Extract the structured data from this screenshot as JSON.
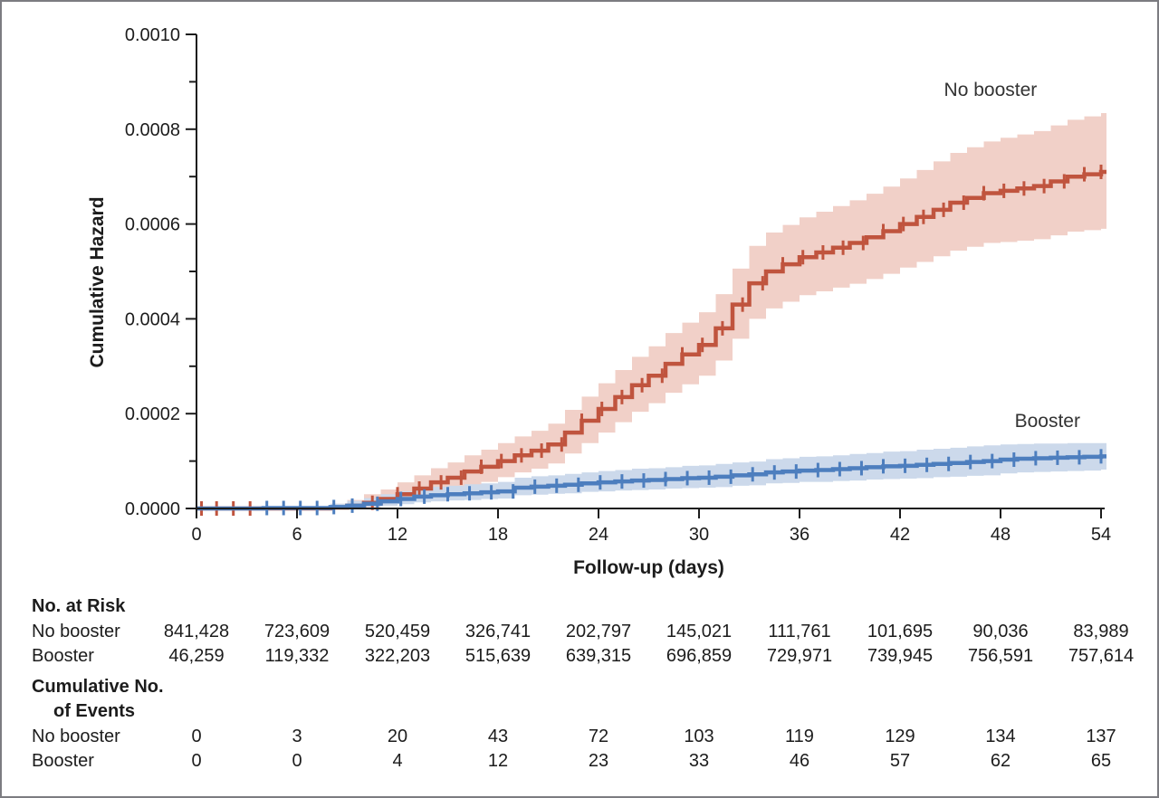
{
  "colors": {
    "no_booster_line": "#c0543e",
    "no_booster_band": "#f1d0c8",
    "booster_line": "#4d7ebe",
    "booster_band": "#ccd9eb",
    "axis": "#1c1c1c",
    "annotation_text": "#333333",
    "frame_border": "#7c7c81"
  },
  "chart_data": {
    "type": "line",
    "subtype": "step-cumulative-hazard-with-ci-bands",
    "title": "",
    "xlabel": "Follow-up (days)",
    "ylabel": "Cumulative Hazard",
    "xlim": [
      0,
      54
    ],
    "ylim": [
      0,
      0.001
    ],
    "x_ticks": [
      0,
      6,
      12,
      18,
      24,
      30,
      36,
      42,
      48,
      54
    ],
    "x_tick_labels": [
      "0",
      "6",
      "12",
      "18",
      "24",
      "30",
      "36",
      "42",
      "48",
      "54"
    ],
    "y_ticks": [
      0,
      0.0002,
      0.0004,
      0.0006,
      0.0008,
      0.001
    ],
    "y_tick_labels": [
      "0.0000",
      "0.0002",
      "0.0004",
      "0.0006",
      "0.0008",
      "0.0010"
    ],
    "y_minor_ticks": [
      0.0001,
      0.0003,
      0.0005,
      0.0007,
      0.0009
    ],
    "grid": false,
    "legend_position": "inline-annotations",
    "series": [
      {
        "name": "No booster",
        "label_day": 47.4,
        "label_value": 0.00087,
        "points_format": [
          "day",
          "cumulative_hazard",
          "ci_lower",
          "ci_upper"
        ],
        "points": [
          [
            0,
            0,
            0,
            0
          ],
          [
            8,
            2e-06,
            0,
            1e-05
          ],
          [
            9,
            6e-06,
            0,
            1.8e-05
          ],
          [
            10,
            1.2e-05,
            2e-06,
            3e-05
          ],
          [
            11,
            2e-05,
            6e-06,
            4e-05
          ],
          [
            12,
            3e-05,
            1.2e-05,
            5.5e-05
          ],
          [
            13,
            4.2e-05,
            2e-05,
            7e-05
          ],
          [
            14,
            5.5e-05,
            3e-05,
            8.5e-05
          ],
          [
            15,
            6.5e-05,
            3.8e-05,
            9.7e-05
          ],
          [
            16,
            7.8e-05,
            4.8e-05,
            0.000112
          ],
          [
            17,
            8.8e-05,
            5.6e-05,
            0.000124
          ],
          [
            18,
            0.0001,
            6.6e-05,
            0.000138
          ],
          [
            19,
            0.000112,
            7.6e-05,
            0.000152
          ],
          [
            20,
            0.000122,
            8.4e-05,
            0.000164
          ],
          [
            21,
            0.000135,
            9.5e-05,
            0.000179
          ],
          [
            22,
            0.00016,
            0.000116,
            0.000208
          ],
          [
            23,
            0.000185,
            0.000138,
            0.000236
          ],
          [
            24,
            0.00021,
            0.00016,
            0.000264
          ],
          [
            25,
            0.000235,
            0.000182,
            0.000292
          ],
          [
            26,
            0.00026,
            0.000204,
            0.00032
          ],
          [
            27,
            0.00028,
            0.000222,
            0.000342
          ],
          [
            28,
            0.000305,
            0.000244,
            0.00037
          ],
          [
            29,
            0.000325,
            0.000262,
            0.000392
          ],
          [
            30,
            0.000345,
            0.00028,
            0.000414
          ],
          [
            31,
            0.00038,
            0.000312,
            0.000452
          ],
          [
            32,
            0.00043,
            0.000358,
            0.000506
          ],
          [
            33,
            0.000475,
            0.0004,
            0.000554
          ],
          [
            34,
            0.0005,
            0.000422,
            0.000582
          ],
          [
            35,
            0.000515,
            0.000436,
            0.000598
          ],
          [
            36,
            0.00053,
            0.00045,
            0.000614
          ],
          [
            37,
            0.00054,
            0.000458,
            0.000626
          ],
          [
            38,
            0.00055,
            0.000466,
            0.000638
          ],
          [
            39,
            0.00056,
            0.000474,
            0.00065
          ],
          [
            40,
            0.000572,
            0.000484,
            0.000664
          ],
          [
            41,
            0.000585,
            0.000495,
            0.000679
          ],
          [
            42,
            0.0006,
            0.000508,
            0.000696
          ],
          [
            43,
            0.000615,
            0.00052,
            0.000714
          ],
          [
            44,
            0.00063,
            0.000532,
            0.000732
          ],
          [
            45,
            0.000645,
            0.000544,
            0.00075
          ],
          [
            46,
            0.000655,
            0.000552,
            0.000762
          ],
          [
            47,
            0.000665,
            0.00056,
            0.000774
          ],
          [
            48,
            0.00067,
            0.000562,
            0.000782
          ],
          [
            49,
            0.000675,
            0.000565,
            0.000789
          ],
          [
            50,
            0.00068,
            0.000568,
            0.000796
          ],
          [
            51,
            0.00069,
            0.000576,
            0.000808
          ],
          [
            52,
            0.0007,
            0.000584,
            0.00082
          ],
          [
            53,
            0.000705,
            0.000587,
            0.000827
          ],
          [
            54,
            0.00071,
            0.00059,
            0.000834
          ]
        ],
        "censor_days": [
          0.3,
          1.2,
          2.2,
          3.2,
          10.5,
          12,
          13.3,
          14.6,
          15.8,
          17,
          18.2,
          19.4,
          20.6,
          21.8,
          23,
          24.2,
          25.4,
          26.6,
          27.8,
          29,
          30.2,
          31.4,
          32.6,
          33.8,
          35,
          36.2,
          37.4,
          38.6,
          39.8,
          41,
          42.2,
          43.4,
          44.6,
          45.8,
          47,
          48.2,
          49.4,
          50.6,
          51.8,
          53,
          54
        ]
      },
      {
        "name": "Booster",
        "label_day": 50.8,
        "label_value": 0.000172,
        "points_format": [
          "day",
          "cumulative_hazard",
          "ci_lower",
          "ci_upper"
        ],
        "points": [
          [
            0,
            0,
            0,
            0
          ],
          [
            4,
            1e-06,
            0,
            4e-06
          ],
          [
            8,
            3e-06,
            0,
            1e-05
          ],
          [
            9,
            6e-06,
            1e-06,
            1.6e-05
          ],
          [
            10,
            1e-05,
            3e-06,
            2.2e-05
          ],
          [
            11,
            1.5e-05,
            6e-06,
            3e-05
          ],
          [
            12,
            2e-05,
            9e-06,
            3.6e-05
          ],
          [
            13,
            2.5e-05,
            1.3e-05,
            4.2e-05
          ],
          [
            14,
            2.8e-05,
            1.5e-05,
            4.6e-05
          ],
          [
            15,
            3e-05,
            1.7e-05,
            4.8e-05
          ],
          [
            16,
            3.2e-05,
            1.8e-05,
            5.1e-05
          ],
          [
            17,
            3.4e-05,
            2e-05,
            5.3e-05
          ],
          [
            18,
            3.6e-05,
            2.1e-05,
            5.6e-05
          ],
          [
            19,
            4.4e-05,
            2.8e-05,
            6.5e-05
          ],
          [
            20,
            4.6e-05,
            2.9e-05,
            6.8e-05
          ],
          [
            21,
            4.8e-05,
            3.1e-05,
            7e-05
          ],
          [
            22,
            5e-05,
            3.2e-05,
            7.3e-05
          ],
          [
            23,
            5.3e-05,
            3.5e-05,
            7.6e-05
          ],
          [
            24,
            5.5e-05,
            3.6e-05,
            7.9e-05
          ],
          [
            25,
            5.7e-05,
            3.8e-05,
            8.1e-05
          ],
          [
            26,
            5.9e-05,
            3.9e-05,
            8.4e-05
          ],
          [
            27,
            6e-05,
            4e-05,
            8.5e-05
          ],
          [
            28,
            6.2e-05,
            4.2e-05,
            8.7e-05
          ],
          [
            29,
            6.4e-05,
            4.3e-05,
            9e-05
          ],
          [
            30,
            6.5e-05,
            4.4e-05,
            9.1e-05
          ],
          [
            31,
            6.7e-05,
            4.5e-05,
            9.4e-05
          ],
          [
            32,
            7e-05,
            4.8e-05,
            9.7e-05
          ],
          [
            33,
            7.2e-05,
            4.9e-05,
            9.9e-05
          ],
          [
            34,
            7.6e-05,
            5.3e-05,
            0.000104
          ],
          [
            35,
            7.8e-05,
            5.4e-05,
            0.000106
          ],
          [
            36,
            8e-05,
            5.6e-05,
            0.000109
          ],
          [
            37,
            8.1e-05,
            5.6e-05,
            0.00011
          ],
          [
            38,
            8.3e-05,
            5.8e-05,
            0.000112
          ],
          [
            39,
            8.5e-05,
            5.9e-05,
            0.000115
          ],
          [
            40,
            8.7e-05,
            6.1e-05,
            0.000117
          ],
          [
            41,
            8.9e-05,
            6.2e-05,
            0.00012
          ],
          [
            42,
            9e-05,
            6.3e-05,
            0.000121
          ],
          [
            43,
            9.2e-05,
            6.4e-05,
            0.000124
          ],
          [
            44,
            9.4e-05,
            6.6e-05,
            0.000126
          ],
          [
            45,
            9.6e-05,
            6.7e-05,
            0.000128
          ],
          [
            46,
            9.8e-05,
            6.9e-05,
            0.000131
          ],
          [
            47,
            0.0001,
            7e-05,
            0.000133
          ],
          [
            48,
            0.000103,
            7.4e-05,
            0.000135
          ],
          [
            49,
            0.000105,
            7.6e-05,
            0.000136
          ],
          [
            50,
            0.000106,
            7.7e-05,
            0.000137
          ],
          [
            51,
            0.000107,
            7.8e-05,
            0.000137
          ],
          [
            52,
            0.000108,
            7.9e-05,
            0.000138
          ],
          [
            53,
            0.000109,
            8e-05,
            0.000138
          ],
          [
            54,
            0.00011,
            8.2e-05,
            0.000138
          ]
        ],
        "censor_days": [
          4.2,
          5.2,
          6.2,
          7.2,
          8.2,
          9.3,
          10.8,
          12.2,
          13.6,
          15,
          16.3,
          17.6,
          18.9,
          20.2,
          21.5,
          22.8,
          24.1,
          25.4,
          26.7,
          28,
          29.3,
          30.6,
          31.9,
          33.2,
          34.5,
          35.8,
          37.1,
          38.4,
          39.7,
          41,
          42.3,
          43.6,
          44.9,
          46.2,
          47.5,
          48.8,
          50.1,
          51.4,
          52.7,
          54
        ]
      }
    ]
  },
  "risk_table": {
    "column_days": [
      0,
      6,
      12,
      18,
      24,
      30,
      36,
      42,
      48,
      54
    ],
    "at_risk": {
      "header": "No. at Risk",
      "rows": [
        {
          "label": "No booster",
          "values": [
            "841,428",
            "723,609",
            "520,459",
            "326,741",
            "202,797",
            "145,021",
            "111,761",
            "101,695",
            "90,036",
            "83,989"
          ]
        },
        {
          "label": "Booster",
          "values": [
            "46,259",
            "119,332",
            "322,203",
            "515,639",
            "639,315",
            "696,859",
            "729,971",
            "739,945",
            "756,591",
            "757,614"
          ]
        }
      ]
    },
    "events": {
      "header_line1": "Cumulative No.",
      "header_line2": "of Events",
      "rows": [
        {
          "label": "No booster",
          "values": [
            "0",
            "3",
            "20",
            "43",
            "72",
            "103",
            "119",
            "129",
            "134",
            "137"
          ]
        },
        {
          "label": "Booster",
          "values": [
            "0",
            "0",
            "4",
            "12",
            "23",
            "33",
            "46",
            "57",
            "62",
            "65"
          ]
        }
      ]
    }
  }
}
